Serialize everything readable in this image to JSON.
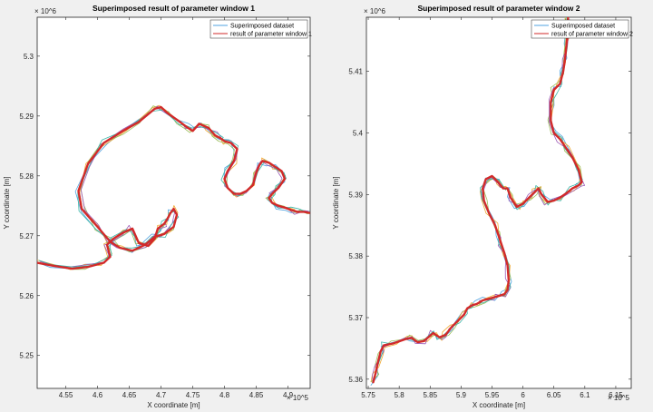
{
  "colors": {
    "figure_bg": "#f0f0f0",
    "axes_bg": "#ffffff",
    "axes_edge": "#262626",
    "superimposed_blue": "#4fa3e0",
    "superimposed_orange": "#f0a830",
    "superimposed_green": "#9bbd5a",
    "superimposed_purple": "#9b59b6",
    "superimposed_teal": "#3cb6a8",
    "result_red": "#d22a2a"
  },
  "chart_data": [
    {
      "type": "line",
      "title": "Superimposed result of parameter window 1",
      "xlabel": "X coordinate [m]",
      "ylabel": "Y coordinate [m]",
      "x_exponent": "× 10^5",
      "y_exponent": "× 10^6",
      "xlim": [
        4.505,
        4.935
      ],
      "ylim": [
        5.2445,
        5.3065
      ],
      "xticks": [
        "4.55",
        "4.6",
        "4.65",
        "4.7",
        "4.75",
        "4.8",
        "4.85",
        "4.9"
      ],
      "xtick_values": [
        4.55,
        4.6,
        4.65,
        4.7,
        4.75,
        4.8,
        4.85,
        4.9
      ],
      "yticks": [
        "5.25",
        "5.26",
        "5.27",
        "5.28",
        "5.29",
        "5.3"
      ],
      "ytick_values": [
        5.25,
        5.26,
        5.27,
        5.28,
        5.29,
        5.3
      ],
      "grid": false,
      "legend_position": "top-right",
      "legend": [
        "Superimposed dataset",
        "result of parameter window 1"
      ],
      "series": [
        {
          "name": "result of parameter window 1",
          "role": "result",
          "x": [
            4.505,
            4.53,
            4.56,
            4.585,
            4.61,
            4.62,
            4.615,
            4.625,
            4.64,
            4.655,
            4.665,
            4.68,
            4.69,
            4.695,
            4.705,
            4.71,
            4.715,
            4.72,
            4.725,
            4.72,
            4.705,
            4.69,
            4.675,
            4.655,
            4.635,
            4.62,
            4.6,
            4.575,
            4.57,
            4.585,
            4.61,
            4.64,
            4.665,
            4.69,
            4.7,
            4.71,
            4.73,
            4.74,
            4.75,
            4.76,
            4.775,
            4.785,
            4.795,
            4.8,
            4.81,
            4.82,
            4.815,
            4.805,
            4.8,
            4.805,
            4.815,
            4.825,
            4.835,
            4.845,
            4.85,
            4.855,
            4.86,
            4.87,
            4.88,
            4.89,
            4.895,
            4.885,
            4.875,
            4.87,
            4.875,
            4.885,
            4.895,
            4.905,
            4.915,
            4.925,
            4.935
          ],
          "y": [
            5.2655,
            5.265,
            5.2645,
            5.2648,
            5.2655,
            5.2665,
            5.2685,
            5.2695,
            5.2705,
            5.2712,
            5.2688,
            5.2683,
            5.2695,
            5.2712,
            5.272,
            5.2728,
            5.2738,
            5.2745,
            5.2735,
            5.2715,
            5.2703,
            5.2698,
            5.2685,
            5.2675,
            5.268,
            5.269,
            5.2715,
            5.2745,
            5.2775,
            5.282,
            5.2855,
            5.2875,
            5.289,
            5.2912,
            5.2915,
            5.2905,
            5.289,
            5.2882,
            5.2875,
            5.2887,
            5.288,
            5.2868,
            5.2862,
            5.2858,
            5.2855,
            5.2845,
            5.2825,
            5.2808,
            5.2795,
            5.278,
            5.277,
            5.277,
            5.2775,
            5.2785,
            5.2805,
            5.2818,
            5.2825,
            5.2822,
            5.2815,
            5.2808,
            5.2795,
            5.278,
            5.277,
            5.2763,
            5.2755,
            5.275,
            5.2747,
            5.2743,
            5.274,
            5.274,
            5.2738
          ]
        }
      ]
    },
    {
      "type": "line",
      "title": "Superimposed result of parameter window 2",
      "xlabel": "X coordinate [m]",
      "ylabel": "Y coordinate [m]",
      "x_exponent": "× 10^5",
      "y_exponent": "× 10^6",
      "xlim": [
        5.747,
        6.175
      ],
      "ylim": [
        5.3585,
        5.4188
      ],
      "xticks": [
        "5.75",
        "5.8",
        "5.85",
        "5.9",
        "5.95",
        "6",
        "6.05",
        "6.1",
        "6.15"
      ],
      "xtick_values": [
        5.75,
        5.8,
        5.85,
        5.9,
        5.95,
        6.0,
        6.05,
        6.1,
        6.15
      ],
      "yticks": [
        "5.36",
        "5.37",
        "5.38",
        "5.39",
        "5.4",
        "5.41"
      ],
      "ytick_values": [
        5.36,
        5.37,
        5.38,
        5.39,
        5.4,
        5.41
      ],
      "grid": false,
      "legend_position": "top-right",
      "legend": [
        "Superimposed dataset",
        "result of parameter window 2"
      ],
      "series": [
        {
          "name": "result of parameter window 2",
          "role": "result",
          "x": [
            5.758,
            5.762,
            5.765,
            5.77,
            5.775,
            5.79,
            5.81,
            5.82,
            5.83,
            5.84,
            5.855,
            5.865,
            5.875,
            5.885,
            5.895,
            5.905,
            5.91,
            5.918,
            5.925,
            5.935,
            5.95,
            5.96,
            5.97,
            5.975,
            5.977,
            5.975,
            5.97,
            5.965,
            5.96,
            5.955,
            5.945,
            5.937,
            5.935,
            5.94,
            5.95,
            5.96,
            5.968,
            5.975,
            5.98,
            5.99,
            6.0,
            6.01,
            6.02,
            6.025,
            6.03,
            6.04,
            6.05,
            6.06,
            6.07,
            6.08,
            6.09,
            6.095,
            6.09,
            6.08,
            6.07,
            6.06,
            6.05,
            6.045,
            6.045,
            6.05,
            6.06,
            6.065,
            6.068,
            6.07,
            6.072,
            6.073
          ],
          "y": [
            5.3595,
            5.361,
            5.3625,
            5.3645,
            5.3655,
            5.3658,
            5.3665,
            5.3667,
            5.366,
            5.3662,
            5.3675,
            5.3668,
            5.3672,
            5.3685,
            5.3695,
            5.3705,
            5.3715,
            5.372,
            5.3722,
            5.3728,
            5.3732,
            5.3735,
            5.3738,
            5.3745,
            5.376,
            5.3785,
            5.3805,
            5.382,
            5.3835,
            5.385,
            5.387,
            5.389,
            5.391,
            5.3925,
            5.393,
            5.392,
            5.391,
            5.391,
            5.3895,
            5.388,
            5.3885,
            5.3895,
            5.3905,
            5.391,
            5.39,
            5.3888,
            5.389,
            5.3895,
            5.3902,
            5.391,
            5.3915,
            5.392,
            5.394,
            5.396,
            5.3975,
            5.399,
            5.4,
            5.402,
            5.405,
            5.407,
            5.408,
            5.41,
            5.412,
            5.414,
            5.416,
            5.4188
          ]
        }
      ]
    }
  ]
}
